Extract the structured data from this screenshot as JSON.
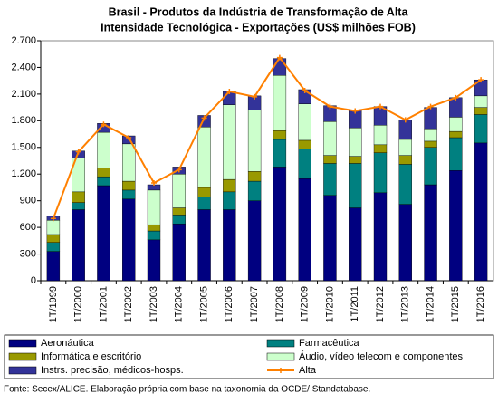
{
  "chart_data": {
    "type": "bar",
    "stacked": true,
    "title": [
      "Brasil - Produtos da Indústria de Transformação de Alta",
      "Intensidade Tecnológica - Exportações (US$ milhões FOB)"
    ],
    "note": "Fonte: Secex/ALICE. Elaboração própria com base na taxonomia da OCDE/ Standatabase.",
    "categories": [
      "1T/1999",
      "1T/2000",
      "1T/2001",
      "1T/2002",
      "1T/2003",
      "1T/2004",
      "1T/2005",
      "1T/2006",
      "1T/2007",
      "1T/2008",
      "1T/2009",
      "1T/2010",
      "1T/2011",
      "1T/2012",
      "1T/2013",
      "1T/2014",
      "1T/2015",
      "1T/2016"
    ],
    "ylim": [
      0,
      2700
    ],
    "yticks": [
      0,
      300,
      600,
      900,
      {
        "value": 1200,
        "label": "1.200"
      },
      {
        "value": 1500,
        "label": "1.500"
      },
      {
        "value": 1800,
        "label": "1.800"
      },
      {
        "value": 2100,
        "label": "2.100"
      },
      {
        "value": 2400,
        "label": "2.400"
      },
      {
        "value": 2700,
        "label": "2.700"
      }
    ],
    "series": [
      {
        "name": "Aeronáutica",
        "type": "bar",
        "color": "#000080",
        "values": [
          330,
          800,
          1070,
          920,
          460,
          640,
          800,
          800,
          900,
          1280,
          1150,
          960,
          820,
          990,
          860,
          1080,
          1240,
          1550
        ]
      },
      {
        "name": "Farmacêutica",
        "type": "bar",
        "color": "#008080",
        "values": [
          100,
          80,
          100,
          100,
          100,
          100,
          140,
          200,
          220,
          310,
          330,
          360,
          500,
          450,
          450,
          420,
          370,
          320
        ]
      },
      {
        "name": "Informática e escritório",
        "type": "bar",
        "color": "#999900",
        "values": [
          90,
          120,
          100,
          100,
          70,
          80,
          110,
          140,
          110,
          100,
          100,
          90,
          80,
          90,
          100,
          70,
          70,
          80
        ]
      },
      {
        "name": "Áudio, vídeo telecom e componentes",
        "type": "bar",
        "color": "#ccffcc",
        "values": [
          160,
          380,
          400,
          420,
          390,
          380,
          680,
          840,
          690,
          620,
          410,
          380,
          320,
          220,
          180,
          140,
          160,
          130
        ]
      },
      {
        "name": "Instrs. precisão, médicos-hosps.",
        "type": "bar",
        "color": "#333399",
        "values": [
          50,
          80,
          100,
          90,
          60,
          80,
          130,
          150,
          160,
          190,
          160,
          180,
          200,
          210,
          220,
          240,
          220,
          180
        ]
      },
      {
        "name": "Alta",
        "type": "line",
        "color": "#ff8000",
        "values": [
          700,
          1450,
          1760,
          1610,
          1100,
          1250,
          1830,
          2130,
          2070,
          2510,
          2140,
          1960,
          1910,
          1960,
          1810,
          1960,
          2060,
          2260
        ]
      }
    ]
  }
}
